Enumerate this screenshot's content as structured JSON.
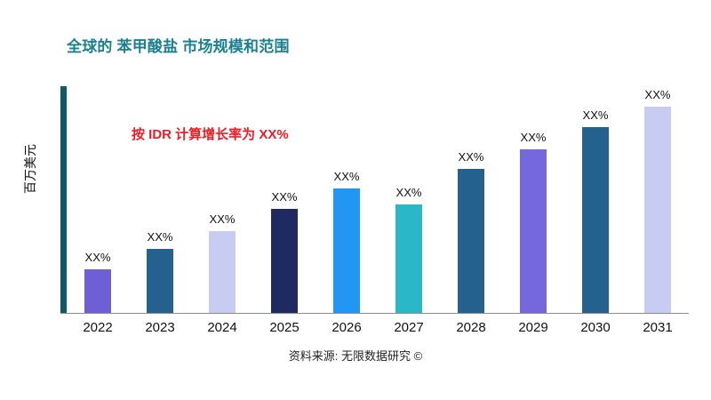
{
  "title": "全球的 苯甲酸盐 市场规模和范围",
  "annotation": "按 IDR 计算增长率为 XX%",
  "footer": "资料来源: 无限数据研究 ©",
  "colors": {
    "title": "#1b808f",
    "annotation": "#ee1c25",
    "axis": "#105a68"
  },
  "chart_data": {
    "type": "bar",
    "title": "全球的 苯甲酸盐 市场规模和范围",
    "xlabel": "",
    "ylabel": "百万美元",
    "grid": false,
    "legend": "none",
    "categories": [
      "2022",
      "2023",
      "2024",
      "2025",
      "2026",
      "2027",
      "2028",
      "2029",
      "2030",
      "2031"
    ],
    "values": [
      49,
      72,
      92,
      117,
      140,
      122,
      162,
      184,
      209,
      232
    ],
    "ylim": [
      0,
      255
    ],
    "value_labels": [
      "XX%",
      "XX%",
      "XX%",
      "XX%",
      "XX%",
      "XX%",
      "XX%",
      "XX%",
      "XX%",
      "XX%"
    ],
    "bar_colors": [
      "#6e5fd6",
      "#25618f",
      "#c8cbf2",
      "#1f2a63",
      "#2196f3",
      "#2ab7c8",
      "#25618f",
      "#7567dd",
      "#25618f",
      "#c8cbf2"
    ]
  }
}
